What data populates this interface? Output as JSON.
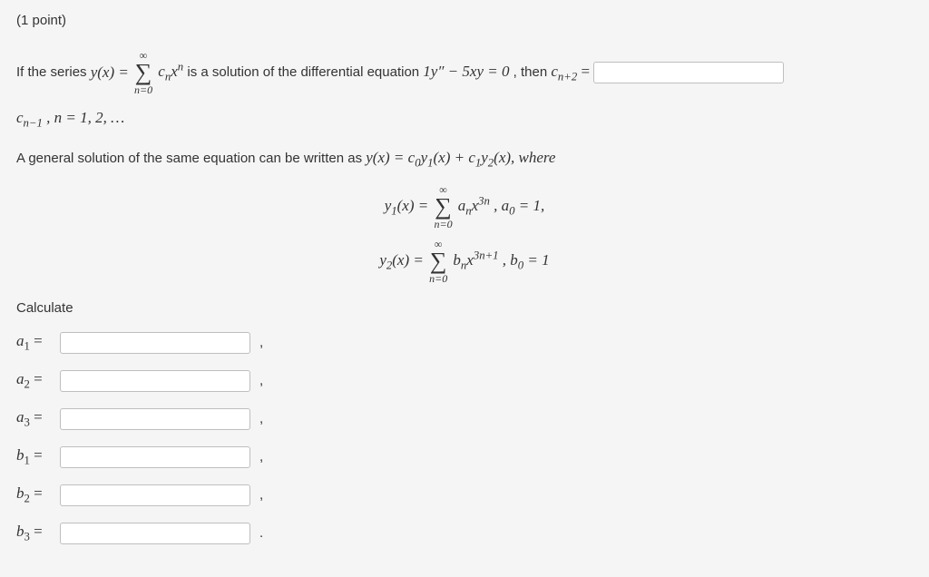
{
  "points": "(1 point)",
  "prefix": "If the series ",
  "series_lhs": "y(x) = ",
  "series_sum_top": "∞",
  "series_sum_bot": "n=0",
  "series_term_c": "c",
  "series_term_x": "x",
  "series_term_exp": "n",
  "series_term_sub": "n",
  "is_sol": " is a solution of the differential equation ",
  "de": "1y″ − 5xy = 0",
  "then": ", then ",
  "cnp2": "c",
  "cnp2_sub": "n+2",
  "eq_sign": " = ",
  "line2": "c",
  "line2_sub": "n−1",
  "line2_tail": ", n = 1, 2, …",
  "gen_sol_pre": "A general solution of the same equation can be written as ",
  "gen_sol_eq": "y(x) = c",
  "gen_sol_c0": "0",
  "gen_sol_y1": "y",
  "gen_sol_y1sub": "1",
  "gen_sol_mid": "(x) + c",
  "gen_sol_c1": "1",
  "gen_sol_y2": "y",
  "gen_sol_y2sub": "2",
  "gen_sol_post": "(x), where",
  "y1_lhs": "y",
  "y1_sub": "1",
  "y1_x": "(x) = ",
  "y1_sum_top": "∞",
  "y1_sum_bot": "n=0",
  "y1_term": "a",
  "y1_term_sub": "n",
  "y1_x2": "x",
  "y1_exp": "3n",
  "y1_cond": ", a",
  "y1_cond_sub": "0",
  "y1_cond_tail": " = 1,",
  "y2_lhs": "y",
  "y2_sub": "2",
  "y2_x": "(x) = ",
  "y2_sum_top": "∞",
  "y2_sum_bot": "n=0",
  "y2_term": "b",
  "y2_term_sub": "n",
  "y2_x2": "x",
  "y2_exp": "3n+1",
  "y2_cond": ", b",
  "y2_cond_sub": "0",
  "y2_cond_tail": " = 1",
  "calculate": "Calculate",
  "labels": {
    "a1": "a",
    "a1_sub": "1",
    "a1_eq": " = ",
    "a2": "a",
    "a2_sub": "2",
    "a2_eq": " = ",
    "a3": "a",
    "a3_sub": "3",
    "a3_eq": " = ",
    "b1": "b",
    "b1_sub": "1",
    "b1_eq": " = ",
    "b2": "b",
    "b2_sub": "2",
    "b2_eq": " = ",
    "b3": "b",
    "b3_sub": "3",
    "b3_eq": " = "
  },
  "comma": ",",
  "period": "."
}
